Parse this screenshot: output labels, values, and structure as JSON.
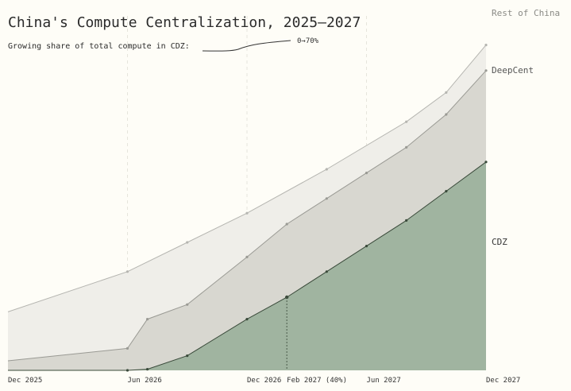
{
  "chart_data": {
    "type": "area",
    "title": "China's Compute Centralization, 2025–2027",
    "subtitle": "Growing share of total compute in CDZ:",
    "subtitle_range": "0→70%",
    "x_ticks": [
      {
        "label": "Dec 2025",
        "month": 0
      },
      {
        "label": "Jun 2026",
        "month": 6
      },
      {
        "label": "Dec 2026",
        "month": 12
      },
      {
        "label": "Feb 2027 (40%)",
        "month": 14
      },
      {
        "label": "Jun 2027",
        "month": 18
      },
      {
        "label": "Dec 2027",
        "month": 24
      }
    ],
    "x_range": [
      0,
      24
    ],
    "y_range": [
      0,
      100
    ],
    "grid": "vertical-dashed",
    "series": [
      {
        "name": "CDZ",
        "color": "#a0b4a0",
        "values": [
          [
            0,
            0
          ],
          [
            6,
            0
          ],
          [
            7,
            0.3
          ],
          [
            9,
            4
          ],
          [
            12,
            14
          ],
          [
            14,
            20
          ],
          [
            16,
            27
          ],
          [
            18,
            34
          ],
          [
            20,
            41
          ],
          [
            22,
            49
          ],
          [
            24,
            57
          ]
        ]
      },
      {
        "name": "DeepCent",
        "color": "#d8d7d0",
        "values": [
          [
            0,
            2.6
          ],
          [
            6,
            6
          ],
          [
            7,
            14
          ],
          [
            9,
            18
          ],
          [
            12,
            31
          ],
          [
            14,
            40
          ],
          [
            16,
            47
          ],
          [
            18,
            54
          ],
          [
            20,
            61
          ],
          [
            22,
            70
          ],
          [
            24,
            82
          ]
        ]
      },
      {
        "name": "Rest of China",
        "color": "#efeee9",
        "values": [
          [
            0,
            16
          ],
          [
            6,
            27
          ],
          [
            9,
            35
          ],
          [
            12,
            43
          ],
          [
            16,
            55
          ],
          [
            20,
            68
          ],
          [
            22,
            76
          ],
          [
            24,
            89
          ]
        ]
      }
    ],
    "annotation": {
      "month": 14,
      "label": "Feb 2027 (40%)"
    },
    "colors": {
      "background": "#fefdf7",
      "cdz_line": "#3a4a3a",
      "deepcent_line": "#9a9a94",
      "rest_line": "#b5b5b0"
    }
  }
}
